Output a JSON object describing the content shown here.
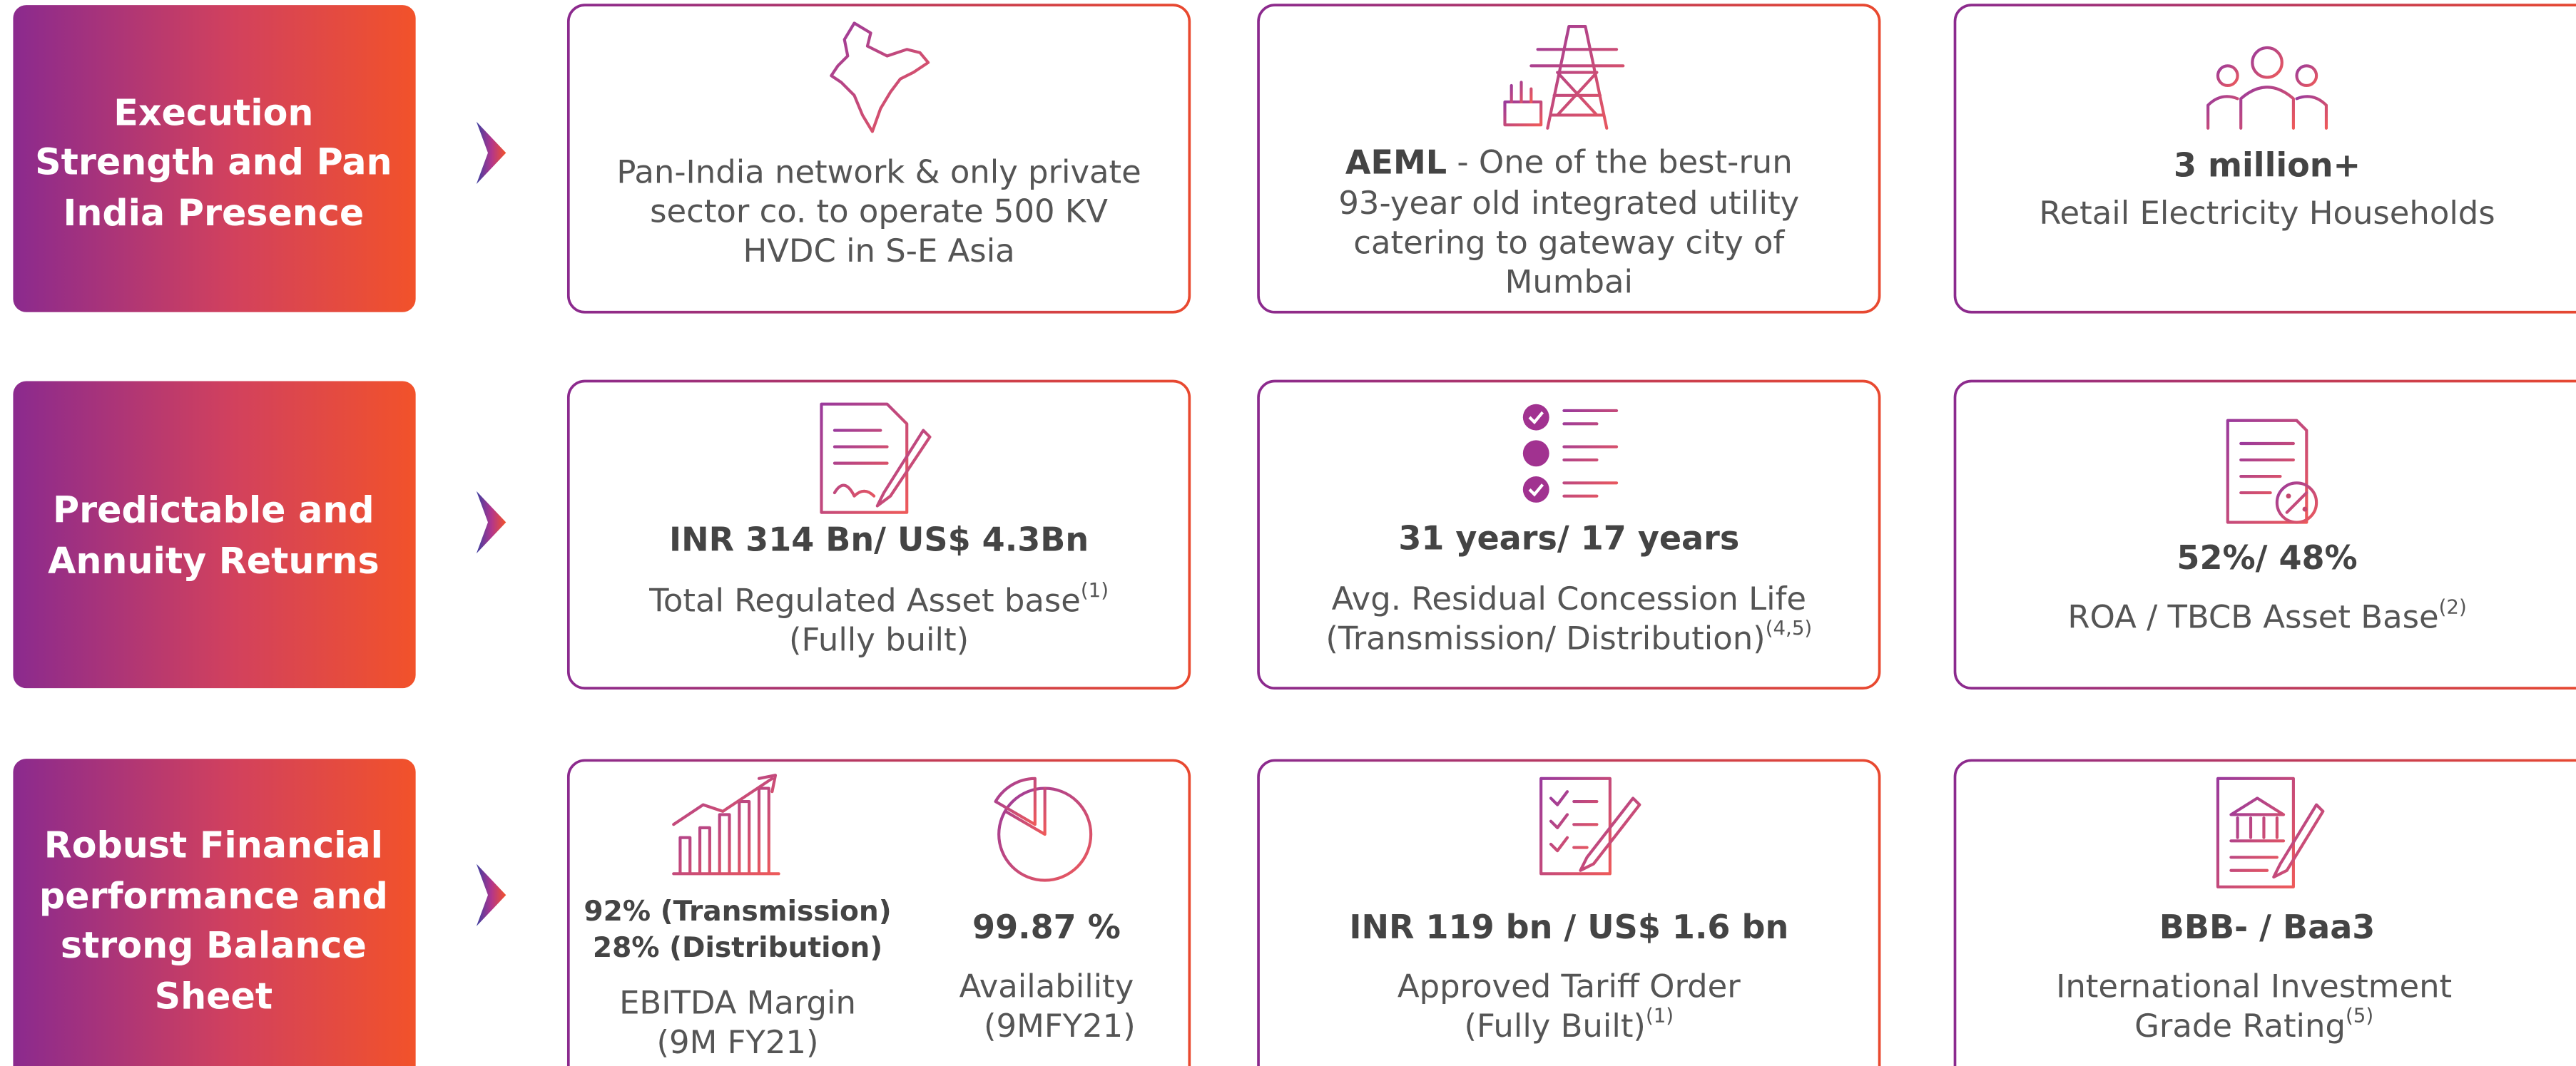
{
  "rows": [
    {
      "label": [
        "Execution",
        "Strength and Pan",
        "India Presence"
      ],
      "cards": [
        {
          "lines": [
            "Pan-India network & only private",
            "sector co. to operate 500 KV",
            "HVDC in S-E Asia"
          ]
        },
        {
          "headline": "AEML",
          "lines": [
            " - One of the best-run",
            "93-year old integrated utility",
            "catering to gateway city of",
            "Mumbai"
          ]
        },
        {
          "headline": "3 million+",
          "lines": [
            "Retail Electricity Households"
          ]
        }
      ]
    },
    {
      "label": [
        "Predictable and",
        "Annuity Returns"
      ],
      "cards": [
        {
          "headline": "INR 314 Bn/ US$ 4.3Bn",
          "lines": [
            "Total Regulated Asset base",
            "(Fully built)"
          ],
          "note": "(1)"
        },
        {
          "headline": "31 years/ 17 years",
          "lines": [
            "Avg. Residual Concession Life",
            "(Transmission/ Distribution)"
          ],
          "note": "(4,5)"
        },
        {
          "headline": "52%/ 48%",
          "lines": [
            "ROA / TBCB Asset Base"
          ],
          "note": "(2)"
        }
      ]
    },
    {
      "label": [
        "Robust Financial",
        "performance and",
        "strong Balance",
        "Sheet"
      ],
      "cards": [
        {
          "parts": [
            {
              "headline": [
                "92% (Transmission)",
                "28%  (Distribution)"
              ],
              "lines": [
                "EBITDA Margin",
                "(9M FY21)"
              ]
            },
            {
              "headline": [
                "99.87 %"
              ],
              "lines": [
                "Availability",
                "(9MFY21)"
              ]
            }
          ]
        },
        {
          "headline": "INR 119 bn / US$ 1.6 bn",
          "lines": [
            "Approved Tariff Order",
            "(Fully Built)"
          ],
          "note": "(1)"
        },
        {
          "headline": "BBB- / Baa3",
          "lines": [
            "International Investment",
            "Grade Rating"
          ],
          "note": "(5)"
        }
      ]
    }
  ]
}
